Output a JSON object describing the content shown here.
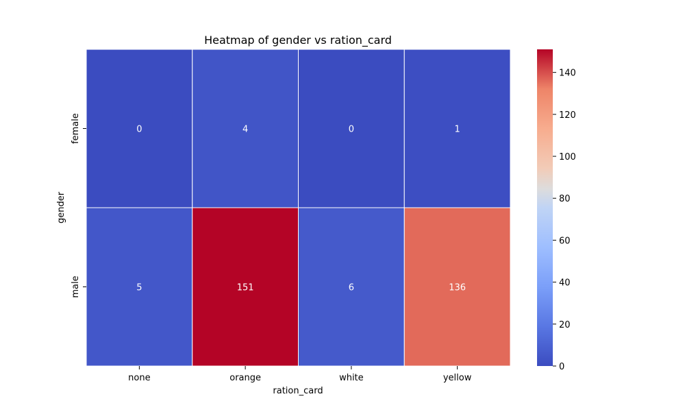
{
  "chart_data": {
    "type": "heatmap",
    "title": "Heatmap of gender vs ration_card",
    "xlabel": "ration_card",
    "ylabel": "gender",
    "x_categories": [
      "none",
      "orange",
      "white",
      "yellow"
    ],
    "y_categories": [
      "female",
      "male"
    ],
    "values": [
      [
        0,
        4,
        0,
        1
      ],
      [
        5,
        151,
        6,
        136
      ]
    ],
    "colormap": "coolwarm",
    "color_range": [
      0,
      151
    ],
    "colorbar_ticks": [
      0,
      20,
      40,
      60,
      80,
      100,
      120,
      140
    ],
    "annotation_color": "#ffffff",
    "cell_border_color": "#ffffff"
  }
}
